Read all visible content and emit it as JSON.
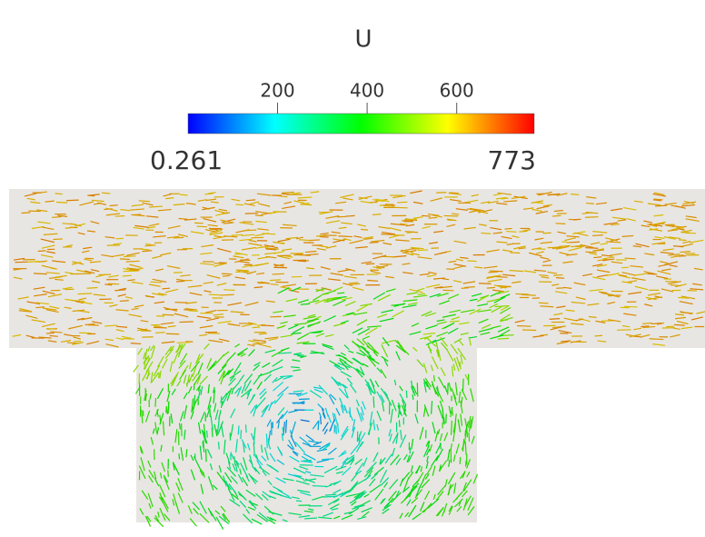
{
  "colorbar": {
    "title": "U",
    "lim": [
      0.261,
      773
    ],
    "ticks": [
      200,
      400,
      600
    ],
    "colors": [
      "#0000ff",
      "#00ffff",
      "#00ff00",
      "#ffff00",
      "#ff0000"
    ]
  }
}
